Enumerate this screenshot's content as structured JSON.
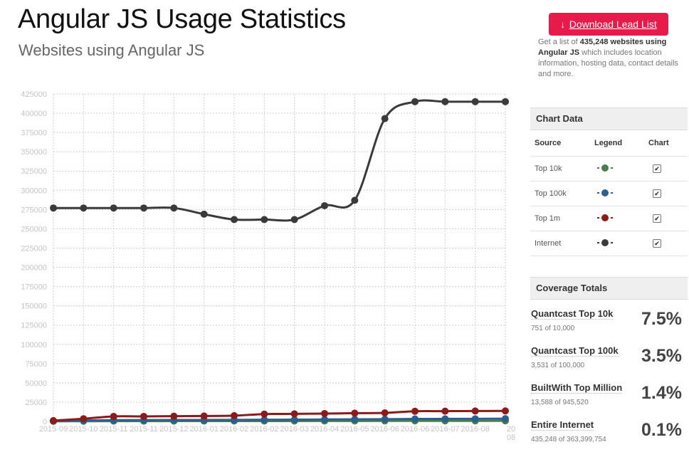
{
  "header": {
    "title": "Angular JS Usage Statistics",
    "subtitle": "Websites using Angular JS"
  },
  "lead": {
    "button_label": "Download Lead List",
    "desc_pre": "Get a list of ",
    "desc_bold": "435,248 websites using Angular JS",
    "desc_post": " which includes location information, hosting data, contact details and more."
  },
  "chart_data_panel": {
    "title": "Chart Data",
    "columns": [
      "Source",
      "Legend",
      "Chart"
    ],
    "rows": [
      {
        "source": "Top 10k",
        "color": "#4a7c4a",
        "checked": true
      },
      {
        "source": "Top 100k",
        "color": "#2a5f8f",
        "checked": true
      },
      {
        "source": "Top 1m",
        "color": "#8b1a1a",
        "checked": true
      },
      {
        "source": "Internet",
        "color": "#3a3a3a",
        "checked": true
      }
    ]
  },
  "coverage": {
    "title": "Coverage Totals",
    "items": [
      {
        "name": "Quantcast Top 10k",
        "sub": "751 of 10,000",
        "pct": "7.5%"
      },
      {
        "name": "Quantcast Top 100k",
        "sub": "3,531 of 100,000",
        "pct": "3.5%"
      },
      {
        "name": "BuiltWith Top Million",
        "sub": "13,588 of 945,520",
        "pct": "1.4%"
      },
      {
        "name": "Entire Internet",
        "sub": "435,248 of 363,399,754",
        "pct": "0.1%"
      }
    ]
  },
  "chart_data": {
    "type": "line",
    "x": [
      "2015-09",
      "2015-10",
      "2015-11",
      "2015-11",
      "2015-12",
      "2016-01",
      "2016-02",
      "2016-02",
      "2016-03",
      "2016-04",
      "2016-05",
      "2016-06",
      "2016-06",
      "2016-07",
      "2016-08",
      "2016-08"
    ],
    "x_tick_labels": [
      "2015-09",
      "2015-10",
      "2015-11",
      "2015-11",
      "2015-12",
      "2016-01",
      "2016-02",
      "2016-02",
      "2016-03",
      "2016-04",
      "2016-05",
      "2016-06",
      "2016-06",
      "2016-07",
      "2016-08",
      "20 08"
    ],
    "ylim": [
      0,
      425000
    ],
    "yticks": [
      0,
      25000,
      50000,
      75000,
      100000,
      125000,
      150000,
      175000,
      200000,
      225000,
      250000,
      275000,
      300000,
      325000,
      350000,
      375000,
      400000,
      425000
    ],
    "grid": true,
    "series": [
      {
        "name": "Internet",
        "color": "#3a3a3a",
        "values": [
          277000,
          277000,
          277000,
          277000,
          277000,
          269000,
          262000,
          262000,
          262000,
          280000,
          287000,
          393000,
          415000,
          415000,
          415000,
          415000
        ]
      },
      {
        "name": "Top 1m",
        "color": "#8b1a1a",
        "values": [
          1000,
          3500,
          6500,
          6500,
          6800,
          7000,
          7500,
          9500,
          9800,
          10200,
          10700,
          11100,
          13200,
          13300,
          13500,
          13588
        ]
      },
      {
        "name": "Top 100k",
        "color": "#2a5f8f",
        "values": [
          500,
          1200,
          1600,
          1700,
          1800,
          1900,
          2000,
          2200,
          2300,
          2500,
          2700,
          2900,
          3200,
          3300,
          3400,
          3531
        ]
      },
      {
        "name": "Top 10k",
        "color": "#4a7c4a",
        "values": [
          100,
          250,
          350,
          380,
          400,
          420,
          450,
          480,
          500,
          550,
          600,
          650,
          700,
          720,
          740,
          751
        ]
      }
    ]
  }
}
